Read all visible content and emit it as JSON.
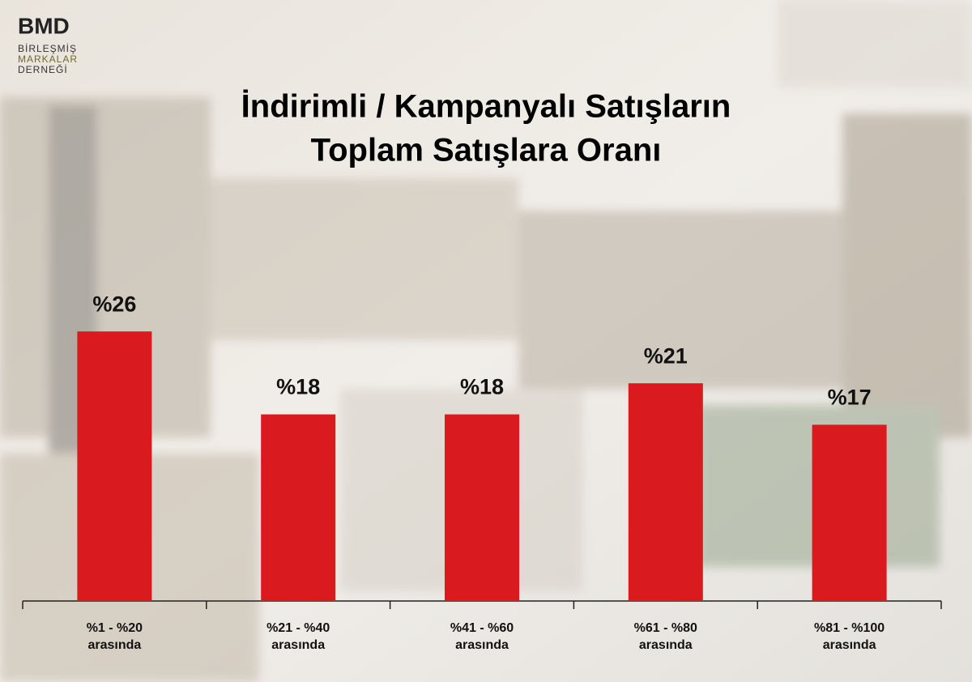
{
  "logo": {
    "mark": "BMD",
    "lines": [
      "BİRLEŞMİŞ",
      "MARKALAR",
      "DERNEĞİ"
    ]
  },
  "chart_data": {
    "type": "bar",
    "title": [
      "İndirimli / Kampanyalı Satışların",
      "Toplam Satışlara Oranı"
    ],
    "categories": [
      [
        "%1 - %20",
        "arasında"
      ],
      [
        "%21 - %40",
        "arasında"
      ],
      [
        "%41 - %60",
        "arasında"
      ],
      [
        "%61 - %80",
        "arasında"
      ],
      [
        "%81 - %100",
        "arasında"
      ]
    ],
    "values": [
      26,
      18,
      18,
      21,
      17
    ],
    "value_labels": [
      "%26",
      "%18",
      "%18",
      "%21",
      "%17"
    ],
    "color": "#d91a1f"
  }
}
